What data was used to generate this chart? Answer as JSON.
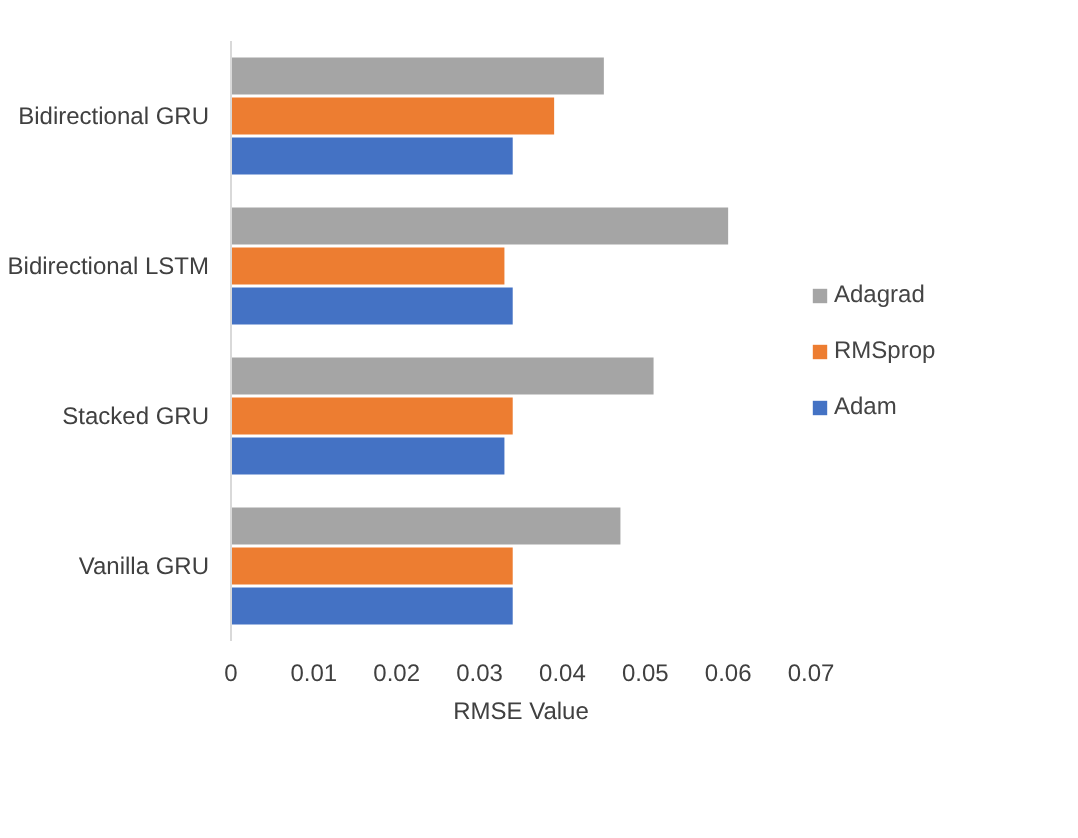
{
  "chart_data": {
    "type": "bar",
    "orientation": "horizontal",
    "xlabel": "RMSE Value",
    "categories": [
      "Bidirectional GRU",
      "Bidirectional LSTM",
      "Stacked GRU",
      "Vanilla GRU"
    ],
    "series": [
      {
        "name": "Adagrad",
        "color": "#a5a5a5",
        "values": [
          0.045,
          0.06,
          0.051,
          0.047
        ]
      },
      {
        "name": "RMSprop",
        "color": "#ed7d31",
        "values": [
          0.039,
          0.033,
          0.034,
          0.034
        ]
      },
      {
        "name": "Adam",
        "color": "#4472c4",
        "values": [
          0.034,
          0.034,
          0.033,
          0.034
        ]
      }
    ],
    "xlim": [
      0,
      0.07
    ],
    "xticks": [
      0,
      0.01,
      0.02,
      0.03,
      0.04,
      0.05,
      0.06,
      0.07
    ],
    "grid": false,
    "legend": "right"
  }
}
